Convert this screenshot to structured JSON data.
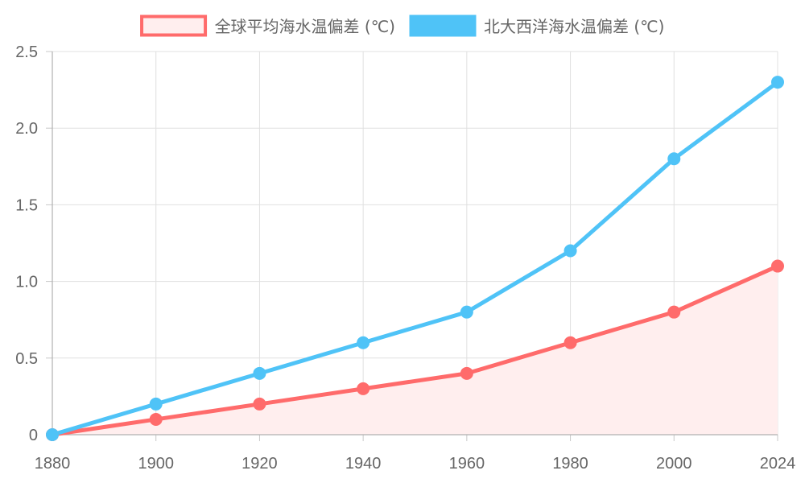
{
  "chart_data": {
    "type": "line",
    "x": [
      "1880",
      "1900",
      "1920",
      "1940",
      "1960",
      "1980",
      "2000",
      "2024"
    ],
    "series": [
      {
        "name": "全球平均海水温偏差 (℃)",
        "values": [
          0,
          0.1,
          0.2,
          0.3,
          0.4,
          0.6,
          0.8,
          1.1
        ],
        "color": "#ff6b6b",
        "fill": true,
        "fill_color": "#ffeeee"
      },
      {
        "name": "北大西洋海水温偏差 (℃)",
        "values": [
          0,
          0.2,
          0.4,
          0.6,
          0.8,
          1.2,
          1.8,
          2.3
        ],
        "color": "#4fc3f7",
        "fill": false
      }
    ],
    "ylim": [
      0,
      2.5
    ],
    "yticks": [
      "0",
      "0.5",
      "1.0",
      "1.5",
      "2.0",
      "2.5"
    ],
    "grid": true,
    "legend": "top-center"
  }
}
